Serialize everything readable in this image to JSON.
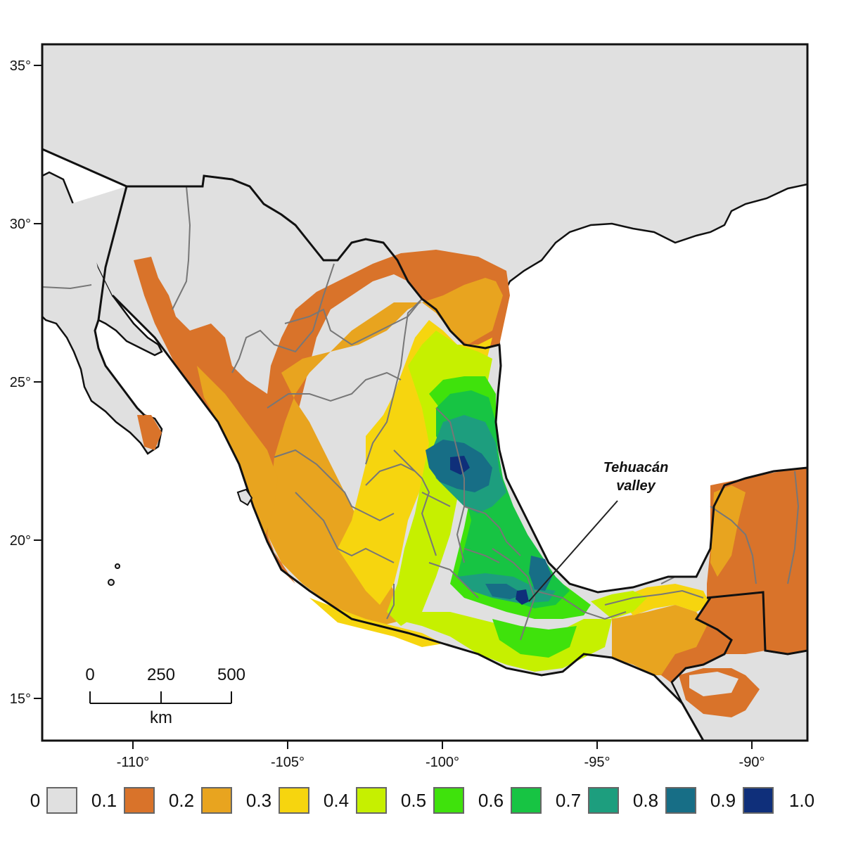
{
  "map": {
    "y_axis_ticks": [
      "35°",
      "30°",
      "25°",
      "20°",
      "15°"
    ],
    "x_axis_ticks": [
      "-110°",
      "-105°",
      "-100°",
      "-95°",
      "-90°"
    ],
    "annotation": {
      "line1": "Tehuacán",
      "line2": "valley"
    },
    "scale_bar": {
      "ticks": [
        "0",
        "250",
        "500"
      ],
      "unit": "km"
    },
    "legend": {
      "labels": [
        "0",
        "0.1",
        "0.2",
        "0.3",
        "0.4",
        "0.5",
        "0.6",
        "0.7",
        "0.8",
        "0.9",
        "1.0"
      ],
      "colors": [
        "#e0e0e0",
        "#d9732a",
        "#e8a41f",
        "#f6d50f",
        "#c6f000",
        "#3fe20c",
        "#17c443",
        "#1d9e7e",
        "#176e86",
        "#0f2f7a"
      ]
    },
    "colors": {
      "land_no_data": "#e0e0e0",
      "sea": "#ffffff",
      "border": "#111111",
      "state_border": "#777777"
    }
  }
}
